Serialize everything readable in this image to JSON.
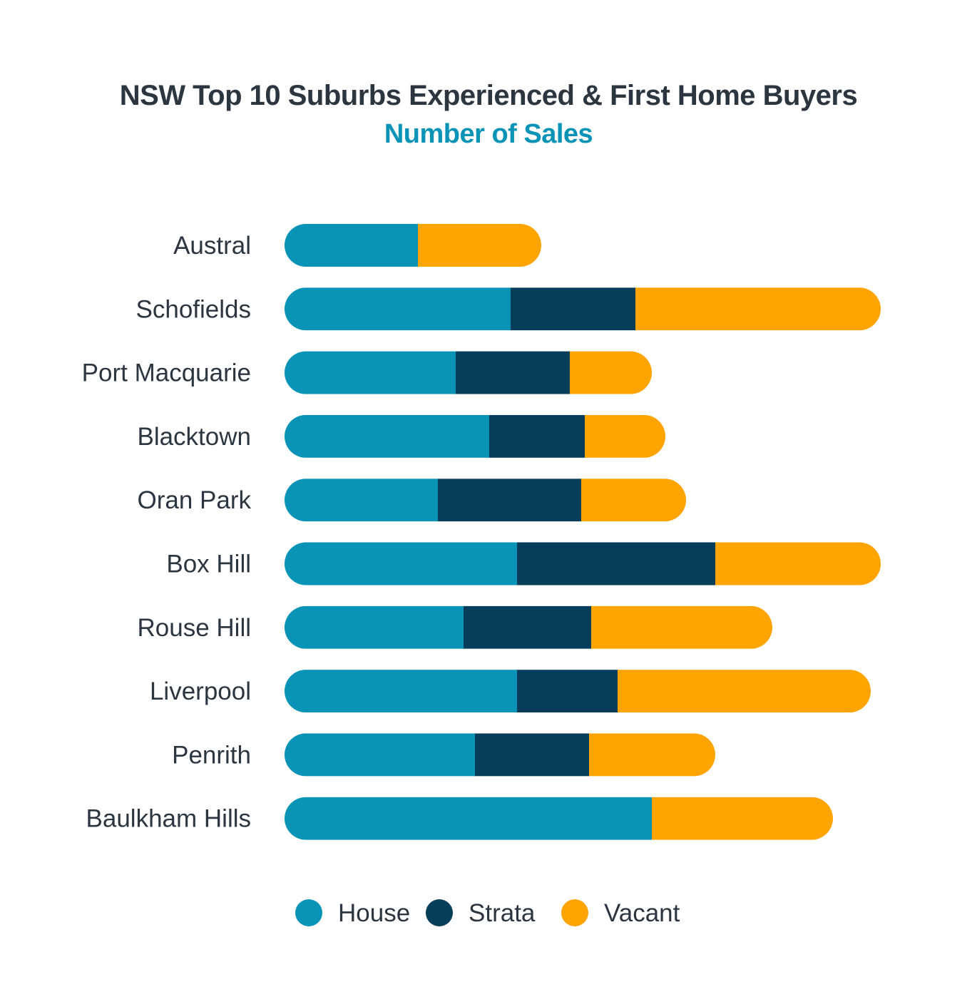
{
  "chart_data": {
    "type": "bar",
    "orientation": "horizontal",
    "stacked": true,
    "title": "NSW Top 10 Suburbs Experienced & First Home Buyers",
    "subtitle": "Number of Sales",
    "categories": [
      "Austral",
      "Schofields",
      "Port Macquarie",
      "Blacktown",
      "Oran Park",
      "Box Hill",
      "Rouse Hill",
      "Liverpool",
      "Penrith",
      "Baulkham Hills"
    ],
    "series": [
      {
        "name": "House",
        "color": "#0994b7",
        "values": [
          187,
          317,
          240,
          287,
          215,
          326,
          251,
          326,
          267,
          515
        ]
      },
      {
        "name": "Strata",
        "color": "#053d5b",
        "values": [
          0,
          175,
          160,
          134,
          201,
          278,
          179,
          141,
          160,
          0
        ]
      },
      {
        "name": "Vacant",
        "color": "#ffa400",
        "values": [
          173,
          344,
          115,
          113,
          147,
          232,
          254,
          355,
          177,
          254
        ]
      }
    ],
    "xlim": [
      0,
      836
    ],
    "axes_visible": false,
    "grid": false,
    "legend_position": "bottom"
  }
}
